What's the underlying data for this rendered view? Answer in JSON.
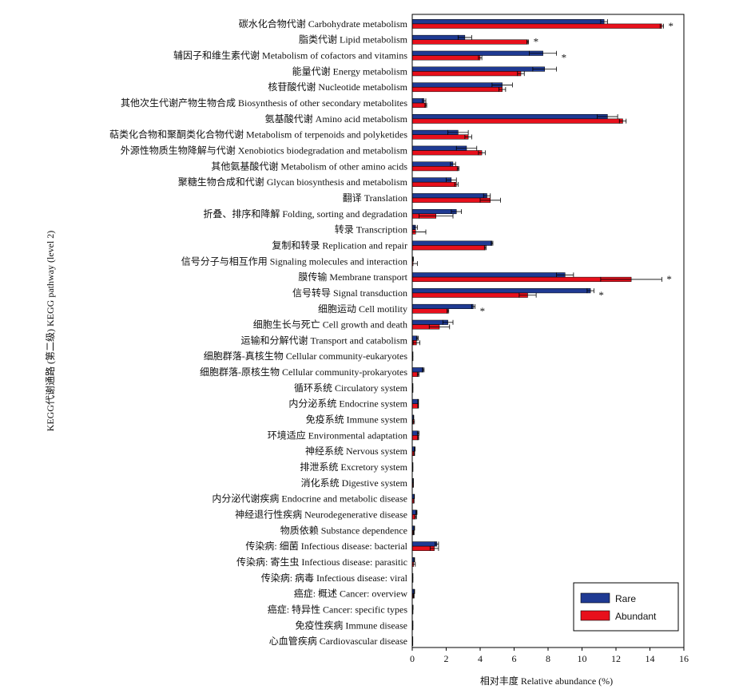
{
  "chart_data": {
    "type": "bar",
    "orientation": "horizontal",
    "xlabel": "相对丰度 Relative abundance (%)",
    "ylabel": "KEGG代谢通路 (第二级) KEGG pathway (level 2)",
    "xlim": [
      0,
      16
    ],
    "xticks": [
      0,
      2,
      4,
      6,
      8,
      10,
      12,
      14,
      16
    ],
    "legend_position": "bottom-right",
    "significance_marker": "*",
    "colors": {
      "Rare": "#1f3a93",
      "Abundant": "#e8101c"
    },
    "categories": [
      "碳水化合物代谢 Carbohydrate metabolism",
      "脂类代谢 Lipid metabolism",
      "辅因子和维生素代谢 Metabolism of cofactors and vitamins",
      "能量代谢 Energy metabolism",
      "核苷酸代谢 Nucleotide metabolism",
      "其他次生代谢产物生物合成 Biosynthesis of other secondary metabolites",
      "氨基酸代谢 Amino acid metabolism",
      "萜类化合物和聚酮类化合物代谢 Metabolism of terpenoids and polyketides",
      "外源性物质生物降解与代谢 Xenobiotics biodegradation and metabolism",
      "其他氨基酸代谢 Metabolism of other amino acids",
      "聚糖生物合成和代谢 Glycan biosynthesis and metabolism",
      "翻译 Translation",
      "折叠、排序和降解 Folding, sorting and degradation",
      "转录 Transcription",
      "复制和转录 Replication and repair",
      "信号分子与相互作用 Signaling molecules and interaction",
      "膜传输 Membrane transport",
      "信号转导 Signal transduction",
      "细胞运动 Cell motility",
      "细胞生长与死亡 Cell growth and death",
      "运输和分解代谢 Transport and catabolism",
      "细胞群落-真核生物 Cellular community-eukaryotes",
      "细胞群落-原核生物 Cellular community-prokaryotes",
      "循环系统 Circulatory system",
      "内分泌系统 Endocrine system",
      "免疫系统 Immune system",
      "环境适应 Environmental adaptation",
      "神经系统 Nervous system",
      "排泄系统 Excretory system",
      "消化系统 Digestive system",
      "内分泌代谢疾病 Endocrine and metabolic disease",
      "神经退行性疾病 Neurodegenerative disease",
      "物质依赖 Substance dependence",
      "传染病: 细菌 Infectious disease: bacterial",
      "传染病: 寄生虫 Infectious disease: parasitic",
      "传染病: 病毒 Infectious disease: viral",
      "癌症: 概述 Cancer: overview",
      "癌症: 特异性 Cancer: specific types",
      "免疫性疾病 Immune disease",
      "心血管疾病 Cardiovascular disease"
    ],
    "series": [
      {
        "name": "Rare",
        "values": [
          11.3,
          3.1,
          7.7,
          7.8,
          5.3,
          0.7,
          11.5,
          2.7,
          3.2,
          2.4,
          2.3,
          4.4,
          2.6,
          0.2,
          4.7,
          0.05,
          9.0,
          10.5,
          3.6,
          2.1,
          0.3,
          0.03,
          0.65,
          0.03,
          0.35,
          0.08,
          0.35,
          0.15,
          0.03,
          0.06,
          0.12,
          0.25,
          0.12,
          1.45,
          0.12,
          0.03,
          0.12,
          0.04,
          0.03,
          0.02
        ],
        "errors": [
          0.2,
          0.4,
          0.8,
          0.7,
          0.6,
          0.1,
          0.6,
          0.6,
          0.6,
          0.15,
          0.3,
          0.2,
          0.3,
          0.1,
          0.05,
          0.02,
          0.5,
          0.2,
          0.1,
          0.3,
          0.05,
          0.01,
          0.05,
          0.01,
          0.02,
          0.01,
          0.05,
          0.02,
          0.01,
          0.01,
          0.01,
          0.03,
          0.02,
          0.1,
          0.02,
          0.01,
          0.02,
          0.01,
          0.01,
          0.01
        ]
      },
      {
        "name": "Abundant",
        "values": [
          14.7,
          6.8,
          4.0,
          6.4,
          5.3,
          0.8,
          12.4,
          3.3,
          4.1,
          2.7,
          2.6,
          4.6,
          1.4,
          0.2,
          4.3,
          0.05,
          12.9,
          6.8,
          2.1,
          1.6,
          0.25,
          0.03,
          0.35,
          0.03,
          0.35,
          0.08,
          0.35,
          0.12,
          0.03,
          0.06,
          0.1,
          0.2,
          0.08,
          1.3,
          0.08,
          0.03,
          0.08,
          0.03,
          0.03,
          0.02
        ],
        "errors": [
          0.1,
          0.05,
          0.1,
          0.2,
          0.2,
          0.05,
          0.2,
          0.2,
          0.2,
          0.05,
          0.1,
          0.6,
          1.0,
          0.6,
          0.05,
          0.25,
          1.8,
          0.5,
          0.05,
          0.6,
          0.2,
          0.01,
          0.05,
          0.01,
          0.02,
          0.05,
          0.03,
          0.02,
          0.01,
          0.01,
          0.01,
          0.05,
          0.03,
          0.25,
          0.1,
          0.01,
          0.03,
          0.01,
          0.01,
          0.01
        ]
      }
    ],
    "significant": [
      true,
      true,
      true,
      false,
      false,
      false,
      false,
      false,
      false,
      false,
      false,
      false,
      false,
      false,
      false,
      false,
      true,
      true,
      true,
      false,
      false,
      false,
      false,
      false,
      false,
      false,
      false,
      false,
      false,
      false,
      false,
      false,
      false,
      false,
      false,
      false,
      false,
      false,
      false,
      false
    ]
  }
}
